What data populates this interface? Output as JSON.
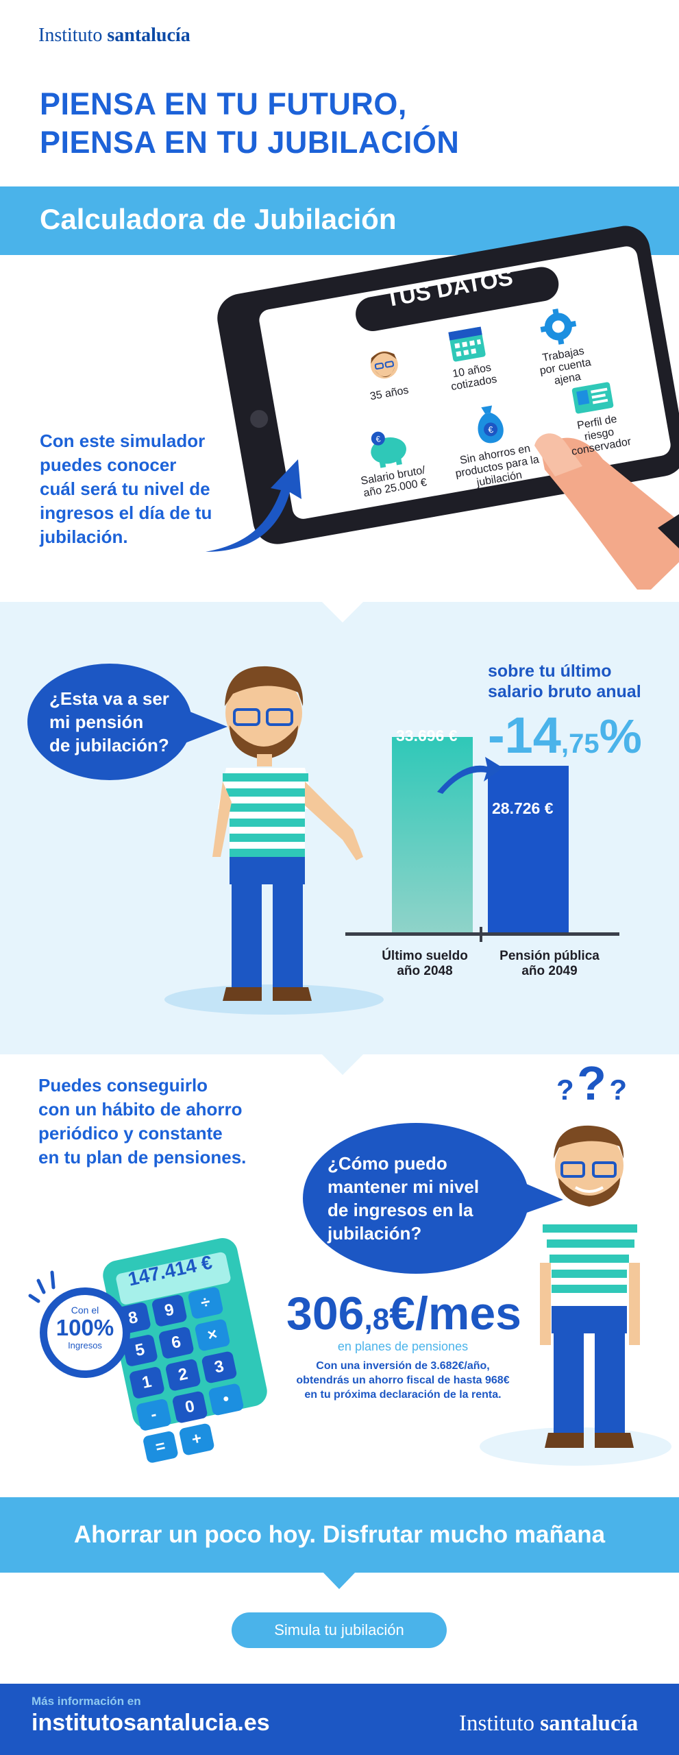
{
  "header": {
    "brand_regular": "Instituto",
    "brand_bold": "santalucía",
    "title_line1": "PIENSA EN TU FUTURO,",
    "title_line2": "PIENSA EN TU JUBILACIÓN"
  },
  "calculator": {
    "title": "Calculadora de Jubilación",
    "intro": [
      "Con este simulador",
      "puedes conocer",
      "cuál será tu nivel de",
      "ingresos el día de tu",
      "jubilación."
    ],
    "tablet": {
      "heading": "TUS DATOS",
      "items": [
        {
          "icon": "person-face-icon",
          "lines": [
            "35 años"
          ]
        },
        {
          "icon": "calendar-icon",
          "lines": [
            "10 años",
            "cotizados"
          ]
        },
        {
          "icon": "gear-icon",
          "lines": [
            "Trabajas",
            "por cuenta",
            "ajena"
          ]
        },
        {
          "icon": "piggy-bank-icon",
          "lines": [
            "Salario bruto/",
            "año 25.000 €"
          ]
        },
        {
          "icon": "money-bag-icon",
          "lines": [
            "Sin ahorros en",
            "productos para la",
            "jubilación"
          ]
        },
        {
          "icon": "id-card-icon",
          "lines": [
            "Perfil de",
            "riesgo",
            "conservador"
          ]
        }
      ]
    }
  },
  "pension": {
    "bubble": [
      "¿Esta va a ser",
      "mi pensión",
      "de jubilación?"
    ],
    "note": [
      "sobre tu último",
      "salario bruto anual"
    ],
    "change_main": "-14",
    "change_decimal": ",75",
    "change_unit": "%",
    "bars": [
      {
        "value_label": "33.696 €",
        "value": 33696,
        "label": [
          "Último sueldo",
          "año 2048"
        ],
        "color": "#2fc8b8"
      },
      {
        "value_label": "28.726 €",
        "value": 28726,
        "label": [
          "Pensión pública",
          "año 2049"
        ],
        "color": "#1a55c9"
      }
    ]
  },
  "savings": {
    "lead": [
      "Puedes conseguirlo",
      "con un hábito de ahorro",
      "periódico y constante",
      "en tu plan de pensiones."
    ],
    "bubble": [
      "¿Cómo puedo",
      "mantener mi nivel",
      "de ingresos en la",
      "jubilación?"
    ],
    "calculator_display": "147.414 €",
    "calculator_keys": [
      "8",
      "9",
      "÷",
      "5",
      "6",
      "×",
      "1",
      "2",
      "3",
      "-",
      "0",
      "•",
      "=",
      "+"
    ],
    "badge_top": "Con el",
    "badge_value": "100%",
    "badge_bottom": "Ingresos",
    "amount_main": "306",
    "amount_decimal": ",8",
    "amount_unit": "€/mes",
    "amount_sub": "en planes de pensiones",
    "detail": [
      "Con una inversión de 3.682€/año,",
      "obtendrás un ahorro fiscal de hasta 968€",
      "en tu próxima declaración de la renta."
    ],
    "question_marks": [
      "?",
      "?",
      "?"
    ]
  },
  "slogan": "Ahorrar un poco hoy. Disfrutar mucho mañana",
  "cta_label": "Simula tu jubilación",
  "footer": {
    "more_info": "Más información en",
    "url": "institutosantalucia.es",
    "brand_regular": "Instituto",
    "brand_bold": "santalucía"
  },
  "colors": {
    "primary": "#1c57c4",
    "accent": "#4ab3ea",
    "teal": "#2fc8b8",
    "light_bg": "#e6f4fc"
  }
}
